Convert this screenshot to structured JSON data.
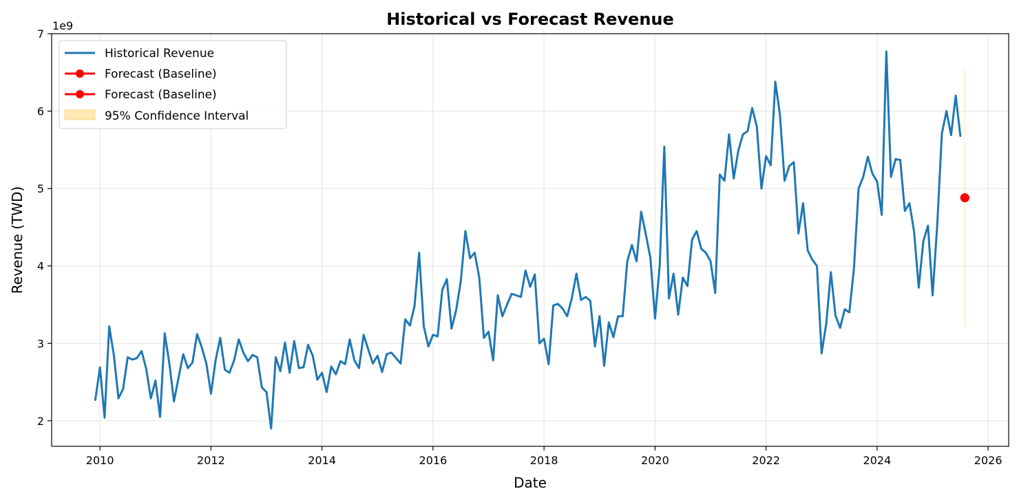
{
  "chart_data": {
    "type": "line",
    "title": "Historical vs Forecast Revenue",
    "xlabel": "Date",
    "ylabel": "Revenue (TWD)",
    "y_offset_label": "1e9",
    "xlim": [
      2009.13,
      2026.37
    ],
    "ylim": [
      1.67,
      7.0
    ],
    "x_ticks": [
      2010,
      2012,
      2014,
      2016,
      2018,
      2020,
      2022,
      2024,
      2026
    ],
    "y_ticks": [
      2,
      3,
      4,
      5,
      6,
      7
    ],
    "grid": true,
    "legend_position": "top-left",
    "series": [
      {
        "name": "Historical Revenue",
        "color": "#1f77b4",
        "x_start": 2009.917,
        "x_step": 0.08333,
        "values": [
          2.27,
          2.69,
          2.04,
          3.22,
          2.85,
          2.29,
          2.41,
          2.82,
          2.79,
          2.81,
          2.9,
          2.67,
          2.29,
          2.52,
          2.05,
          3.13,
          2.74,
          2.25,
          2.56,
          2.86,
          2.68,
          2.75,
          3.12,
          2.95,
          2.74,
          2.35,
          2.78,
          3.07,
          2.66,
          2.62,
          2.78,
          3.05,
          2.88,
          2.77,
          2.85,
          2.82,
          2.43,
          2.37,
          1.9,
          2.82,
          2.64,
          3.01,
          2.62,
          3.03,
          2.68,
          2.69,
          2.98,
          2.84,
          2.53,
          2.62,
          2.37,
          2.7,
          2.6,
          2.77,
          2.73,
          3.05,
          2.78,
          2.68,
          3.11,
          2.92,
          2.74,
          2.84,
          2.63,
          2.86,
          2.88,
          2.81,
          2.74,
          3.31,
          3.23,
          3.48,
          4.17,
          3.22,
          2.96,
          3.11,
          3.09,
          3.69,
          3.83,
          3.19,
          3.43,
          3.8,
          4.45,
          4.1,
          4.17,
          3.85,
          3.07,
          3.15,
          2.78,
          3.62,
          3.35,
          3.5,
          3.64,
          3.62,
          3.6,
          3.94,
          3.73,
          3.89,
          3.0,
          3.06,
          2.73,
          3.49,
          3.51,
          3.45,
          3.35,
          3.58,
          3.9,
          3.56,
          3.6,
          3.55,
          2.96,
          3.35,
          2.71,
          3.27,
          3.08,
          3.35,
          3.35,
          4.06,
          4.27,
          4.06,
          4.7,
          4.41,
          4.1,
          3.32,
          4.0,
          5.54,
          3.58,
          3.9,
          3.37,
          3.85,
          3.74,
          4.34,
          4.45,
          4.22,
          4.17,
          4.06,
          3.65,
          5.18,
          5.1,
          5.7,
          5.13,
          5.49,
          5.7,
          5.74,
          6.04,
          5.8,
          5.0,
          5.42,
          5.3,
          6.38,
          5.95,
          5.1,
          5.29,
          5.34,
          4.42,
          4.81,
          4.2,
          4.08,
          4.0,
          2.87,
          3.25,
          3.92,
          3.36,
          3.2,
          3.44,
          3.4,
          3.97,
          5.0,
          5.15,
          5.41,
          5.19,
          5.09,
          4.66,
          6.77,
          5.15,
          5.38,
          5.37,
          4.71,
          4.81,
          4.44,
          3.72,
          4.32,
          4.52,
          3.62,
          4.53,
          5.71,
          6.0,
          5.69,
          6.2,
          5.68
        ]
      },
      {
        "name": "Forecast (Baseline)",
        "color": "#ff0000",
        "x": [
          2025.58
        ],
        "values": [
          4.88
        ]
      },
      {
        "name": "Forecast (Baseline)",
        "color": "#ff0000",
        "x": [
          2025.58
        ],
        "values": [
          4.88
        ]
      }
    ],
    "confidence_interval": {
      "name": "95% Confidence Interval",
      "color": "#ffa500",
      "x": 2025.58,
      "lower": 3.21,
      "upper": 6.55
    }
  }
}
